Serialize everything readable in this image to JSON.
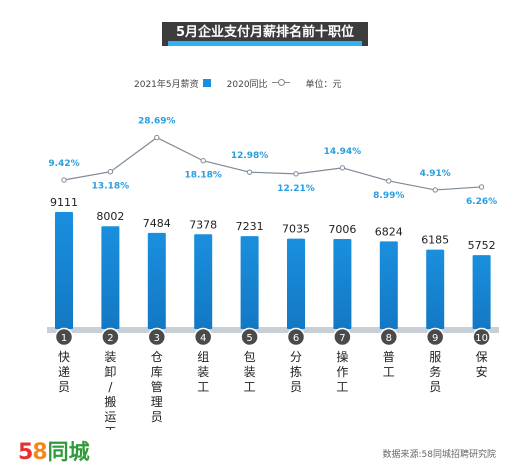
{
  "title": "5月企业支付月薪排名前十职位",
  "legend": {
    "bar_label": "2021年5月薪资",
    "line_label": "2020同比",
    "unit": "单位：元"
  },
  "colors": {
    "bar": "#1a8fde",
    "line": "#7f8a96",
    "pct_label": "#2a9fe0",
    "title_bg": "#3c3c3c",
    "title_accent": "#2eb3f0"
  },
  "logo": {
    "d5": "5",
    "d8": "8",
    "text": "同城"
  },
  "source": "数据来源:58同城招聘研究院",
  "chart_data": {
    "type": "bar",
    "categories": [
      "快递员",
      "装卸/搬运工",
      "仓库管理员",
      "组装工",
      "包装工",
      "分拣员",
      "操作工",
      "普工",
      "服务员",
      "保安"
    ],
    "rank_labels": [
      "1",
      "2",
      "3",
      "4",
      "5",
      "6",
      "7",
      "8",
      "9",
      "10"
    ],
    "series": [
      {
        "name": "2021年5月薪资",
        "type": "bar",
        "values": [
          9111,
          8002,
          7484,
          7378,
          7231,
          7035,
          7006,
          6824,
          6185,
          5752
        ]
      },
      {
        "name": "2020同比",
        "type": "line",
        "values": [
          9.42,
          13.18,
          28.69,
          18.18,
          12.98,
          12.21,
          14.94,
          8.99,
          4.91,
          6.26
        ],
        "labels": [
          "9.42%",
          "13.18%",
          "28.69%",
          "18.18%",
          "12.98%",
          "12.21%",
          "14.94%",
          "8.99%",
          "4.91%",
          "6.26%"
        ]
      }
    ],
    "title": "5月企业支付月薪排名前十职位",
    "unit": "单位：元"
  }
}
